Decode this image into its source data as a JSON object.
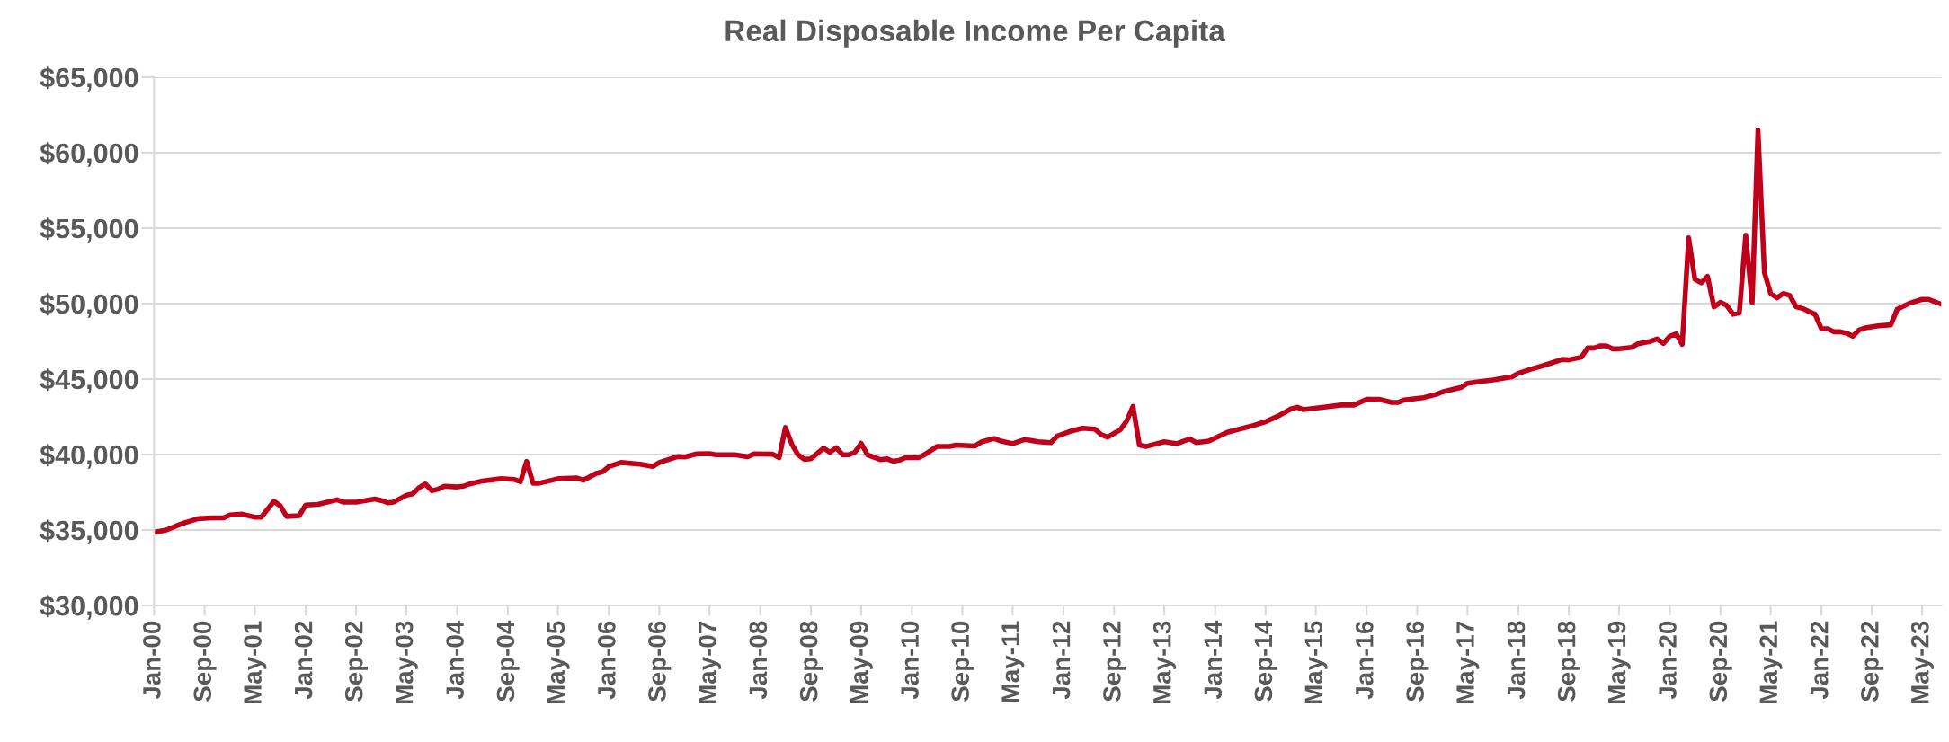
{
  "chart_data": {
    "type": "line",
    "title": "Real Disposable Income Per Capita",
    "x": [
      "2000-01",
      "2000-03",
      "2000-05",
      "2000-06",
      "2000-08",
      "2000-10",
      "2000-12",
      "2001-01",
      "2001-03",
      "2001-05",
      "2001-06",
      "2001-08",
      "2001-09",
      "2001-10",
      "2001-12",
      "2002-01",
      "2002-03",
      "2002-06",
      "2002-07",
      "2002-09",
      "2002-12",
      "2003-01",
      "2003-02",
      "2003-03",
      "2003-05",
      "2003-06",
      "2003-07",
      "2003-08",
      "2003-09",
      "2003-10",
      "2003-11",
      "2004-01",
      "2004-02",
      "2004-03",
      "2004-05",
      "2004-08",
      "2004-10",
      "2004-11",
      "2004-12",
      "2005-01",
      "2005-02",
      "2005-05",
      "2005-08",
      "2005-09",
      "2005-11",
      "2005-12",
      "2006-01",
      "2006-03",
      "2006-06",
      "2006-08",
      "2006-09",
      "2006-12",
      "2007-01",
      "2007-03",
      "2007-05",
      "2007-06",
      "2007-09",
      "2007-11",
      "2007-12",
      "2008-03",
      "2008-04",
      "2008-05",
      "2008-06",
      "2008-07",
      "2008-08",
      "2008-09",
      "2008-11",
      "2008-12",
      "2009-01",
      "2009-02",
      "2009-03",
      "2009-04",
      "2009-05",
      "2009-06",
      "2009-08",
      "2009-09",
      "2009-10",
      "2009-11",
      "2009-12",
      "2010-02",
      "2010-03",
      "2010-05",
      "2010-07",
      "2010-08",
      "2010-11",
      "2010-12",
      "2011-02",
      "2011-03",
      "2011-05",
      "2011-07",
      "2011-09",
      "2011-11",
      "2011-12",
      "2012-02",
      "2012-04",
      "2012-06",
      "2012-07",
      "2012-08",
      "2012-10",
      "2012-11",
      "2012-12",
      "2013-01",
      "2013-02",
      "2013-05",
      "2013-07",
      "2013-09",
      "2013-10",
      "2013-12",
      "2014-03",
      "2014-07",
      "2014-09",
      "2014-11",
      "2015-01",
      "2015-02",
      "2015-03",
      "2015-06",
      "2015-09",
      "2015-11",
      "2016-01",
      "2016-03",
      "2016-05",
      "2016-06",
      "2016-07",
      "2016-10",
      "2016-12",
      "2017-01",
      "2017-04",
      "2017-05",
      "2017-07",
      "2017-09",
      "2017-12",
      "2018-01",
      "2018-03",
      "2018-05",
      "2018-08",
      "2018-09",
      "2018-11",
      "2018-12",
      "2019-01",
      "2019-02",
      "2019-03",
      "2019-04",
      "2019-05",
      "2019-07",
      "2019-08",
      "2019-10",
      "2019-11",
      "2019-12",
      "2020-01",
      "2020-02",
      "2020-03",
      "2020-04",
      "2020-05",
      "2020-06",
      "2020-07",
      "2020-08",
      "2020-09",
      "2020-10",
      "2020-11",
      "2020-12",
      "2021-01",
      "2021-02",
      "2021-03",
      "2021-04",
      "2021-05",
      "2021-06",
      "2021-07",
      "2021-08",
      "2021-09",
      "2021-10",
      "2021-11",
      "2021-12",
      "2022-01",
      "2022-02",
      "2022-03",
      "2022-04",
      "2022-05",
      "2022-06",
      "2022-07",
      "2022-08",
      "2022-10",
      "2022-12",
      "2023-01",
      "2023-03",
      "2023-05",
      "2023-06",
      "2023-08"
    ],
    "series": [
      {
        "color": "#c0001a",
        "values": [
          34850,
          35000,
          35350,
          35500,
          35750,
          35800,
          35800,
          36000,
          36050,
          35850,
          35850,
          36900,
          36600,
          35900,
          35950,
          36650,
          36700,
          37000,
          36850,
          36850,
          37050,
          36950,
          36800,
          36850,
          37300,
          37400,
          37800,
          38050,
          37600,
          37700,
          37900,
          37850,
          37900,
          38050,
          38250,
          38400,
          38350,
          38200,
          39550,
          38100,
          38100,
          38400,
          38450,
          38300,
          38750,
          38850,
          39200,
          39470,
          39360,
          39210,
          39470,
          39870,
          39830,
          40040,
          40060,
          39980,
          39980,
          39850,
          40040,
          40020,
          39790,
          41790,
          40680,
          39980,
          39680,
          39720,
          40430,
          40150,
          40450,
          39980,
          39980,
          40150,
          40740,
          39980,
          39660,
          39720,
          39550,
          39620,
          39790,
          39790,
          39980,
          40530,
          40530,
          40620,
          40570,
          40830,
          41060,
          40910,
          40720,
          41000,
          40850,
          40790,
          41210,
          41530,
          41740,
          41680,
          41320,
          41150,
          41640,
          42230,
          43190,
          40620,
          40530,
          40850,
          40720,
          41040,
          40790,
          40890,
          41470,
          41910,
          42170,
          42550,
          43020,
          43130,
          42980,
          43130,
          43280,
          43280,
          43660,
          43660,
          43450,
          43450,
          43620,
          43770,
          43980,
          44150,
          44450,
          44720,
          44830,
          44940,
          45150,
          45380,
          45640,
          45890,
          46300,
          46270,
          46450,
          47060,
          47060,
          47200,
          47200,
          47000,
          47000,
          47100,
          47340,
          47500,
          47660,
          47360,
          47840,
          48000,
          47300,
          54350,
          51610,
          51370,
          51800,
          49780,
          50080,
          49880,
          49290,
          49380,
          54540,
          50040,
          61490,
          52060,
          50670,
          50380,
          50670,
          50540,
          49780,
          49680,
          49480,
          49290,
          48330,
          48330,
          48130,
          48130,
          48040,
          47840,
          48250,
          48390,
          48530,
          48590,
          49620,
          50020,
          50280,
          50280,
          49960
        ]
      }
    ],
    "xlim": [
      "2000-01",
      "2023-08"
    ],
    "xticks": [
      {
        "value": "2000-01",
        "label": "Jan-00"
      },
      {
        "value": "2000-09",
        "label": "Sep-00"
      },
      {
        "value": "2001-05",
        "label": "May-01"
      },
      {
        "value": "2002-01",
        "label": "Jan-02"
      },
      {
        "value": "2002-09",
        "label": "Sep-02"
      },
      {
        "value": "2003-05",
        "label": "May-03"
      },
      {
        "value": "2004-01",
        "label": "Jan-04"
      },
      {
        "value": "2004-09",
        "label": "Sep-04"
      },
      {
        "value": "2005-05",
        "label": "May-05"
      },
      {
        "value": "2006-01",
        "label": "Jan-06"
      },
      {
        "value": "2006-09",
        "label": "Sep-06"
      },
      {
        "value": "2007-05",
        "label": "May-07"
      },
      {
        "value": "2008-01",
        "label": "Jan-08"
      },
      {
        "value": "2008-09",
        "label": "Sep-08"
      },
      {
        "value": "2009-05",
        "label": "May-09"
      },
      {
        "value": "2010-01",
        "label": "Jan-10"
      },
      {
        "value": "2010-09",
        "label": "Sep-10"
      },
      {
        "value": "2011-05",
        "label": "May-11"
      },
      {
        "value": "2012-01",
        "label": "Jan-12"
      },
      {
        "value": "2012-09",
        "label": "Sep-12"
      },
      {
        "value": "2013-05",
        "label": "May-13"
      },
      {
        "value": "2014-01",
        "label": "Jan-14"
      },
      {
        "value": "2014-09",
        "label": "Sep-14"
      },
      {
        "value": "2015-05",
        "label": "May-15"
      },
      {
        "value": "2016-01",
        "label": "Jan-16"
      },
      {
        "value": "2016-09",
        "label": "Sep-16"
      },
      {
        "value": "2017-05",
        "label": "May-17"
      },
      {
        "value": "2018-01",
        "label": "Jan-18"
      },
      {
        "value": "2018-09",
        "label": "Sep-18"
      },
      {
        "value": "2019-05",
        "label": "May-19"
      },
      {
        "value": "2020-01",
        "label": "Jan-20"
      },
      {
        "value": "2020-09",
        "label": "Sep-20"
      },
      {
        "value": "2021-05",
        "label": "May-21"
      },
      {
        "value": "2022-01",
        "label": "Jan-22"
      },
      {
        "value": "2022-09",
        "label": "Sep-22"
      },
      {
        "value": "2023-05",
        "label": "May-23"
      }
    ],
    "ylim": [
      30000,
      65000
    ],
    "yticks": [
      {
        "value": 30000,
        "label": "$30,000"
      },
      {
        "value": 35000,
        "label": "$35,000"
      },
      {
        "value": 40000,
        "label": "$40,000"
      },
      {
        "value": 45000,
        "label": "$45,000"
      },
      {
        "value": 50000,
        "label": "$50,000"
      },
      {
        "value": 55000,
        "label": "$55,000"
      },
      {
        "value": 60000,
        "label": "$60,000"
      },
      {
        "value": 65000,
        "label": "$65,000"
      }
    ],
    "grid": "y",
    "marker": "none",
    "line_style": "solid"
  }
}
